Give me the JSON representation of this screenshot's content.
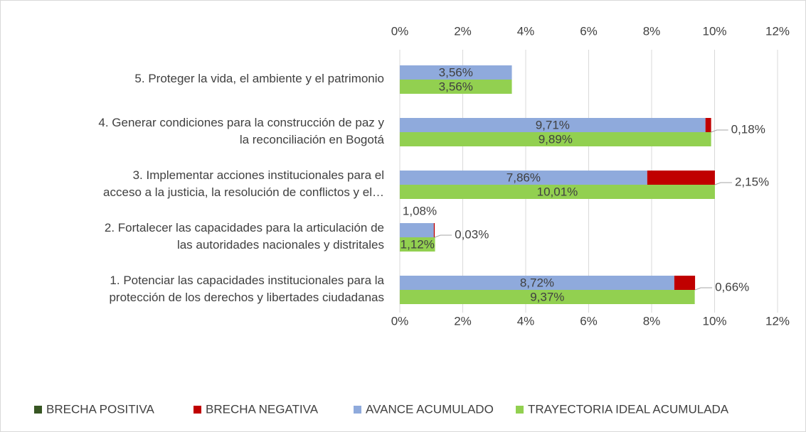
{
  "chart_data": {
    "type": "hbar",
    "categories": [
      "5. Proteger la vida, el ambiente y el patrimonio",
      "4. Generar condiciones para la construcción de paz y\nla reconciliación en Bogotá",
      "3. Implementar acciones institucionales para el\nacceso a la justicia, la resolución de conflictos y el…",
      "2. Fortalecer las capacidades para la articulación de\nlas autoridades nacionales y distritales",
      "1. Potenciar las capacidades institucionales para la\nprotección de los derechos y libertades ciudadanas"
    ],
    "series": [
      {
        "name": "BRECHA POSITIVA",
        "color": "#375623",
        "values": [
          null,
          null,
          null,
          null,
          null
        ]
      },
      {
        "name": "BRECHA NEGATIVA",
        "color": "#c00000",
        "values": [
          null,
          0.18,
          2.15,
          0.03,
          0.66
        ],
        "value_labels": [
          null,
          "0,18%",
          "2,15%",
          "0,03%",
          "0,66%"
        ]
      },
      {
        "name": "AVANCE ACUMULADO",
        "color": "#8faadc",
        "values": [
          3.56,
          9.71,
          7.86,
          1.08,
          8.72
        ],
        "value_labels": [
          "3,56%",
          "9,71%",
          "7,86%",
          "1,08%",
          "8,72%"
        ]
      },
      {
        "name": "TRAYECTORIA IDEAL ACUMULADA",
        "color": "#92d050",
        "values": [
          3.56,
          9.89,
          10.01,
          1.12,
          9.37
        ],
        "value_labels": [
          "3,56%",
          "9,89%",
          "10,01%",
          "1,12%",
          "9,37%"
        ]
      }
    ],
    "xlim": [
      0,
      12
    ],
    "xticks": [
      {
        "value": 0,
        "label": "0%"
      },
      {
        "value": 2,
        "label": "2%"
      },
      {
        "value": 4,
        "label": "4%"
      },
      {
        "value": 6,
        "label": "6%"
      },
      {
        "value": 8,
        "label": "8%"
      },
      {
        "value": 10,
        "label": "10%"
      },
      {
        "value": 12,
        "label": "12%"
      }
    ],
    "grid": true,
    "legend": "bottom"
  }
}
